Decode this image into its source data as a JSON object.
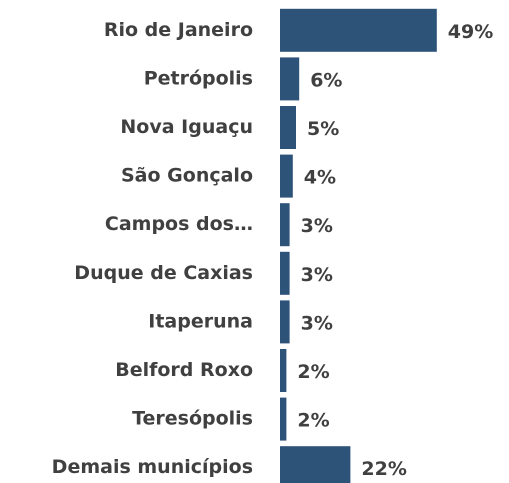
{
  "chart_data": {
    "type": "bar",
    "orientation": "horizontal",
    "categories": [
      "Rio de Janeiro",
      "Petrópolis",
      "Nova Iguaçu",
      "São Gonçalo",
      "Campos dos…",
      "Duque de Caxias",
      "Itaperuna",
      "Belford Roxo",
      "Teresópolis",
      "Demais municípios"
    ],
    "values": [
      49,
      6,
      5,
      4,
      3,
      3,
      3,
      2,
      2,
      22
    ],
    "value_labels": [
      "49%",
      "6%",
      "5%",
      "4%",
      "3%",
      "3%",
      "3%",
      "2%",
      "2%",
      "22%"
    ],
    "color": "#2e5378"
  }
}
